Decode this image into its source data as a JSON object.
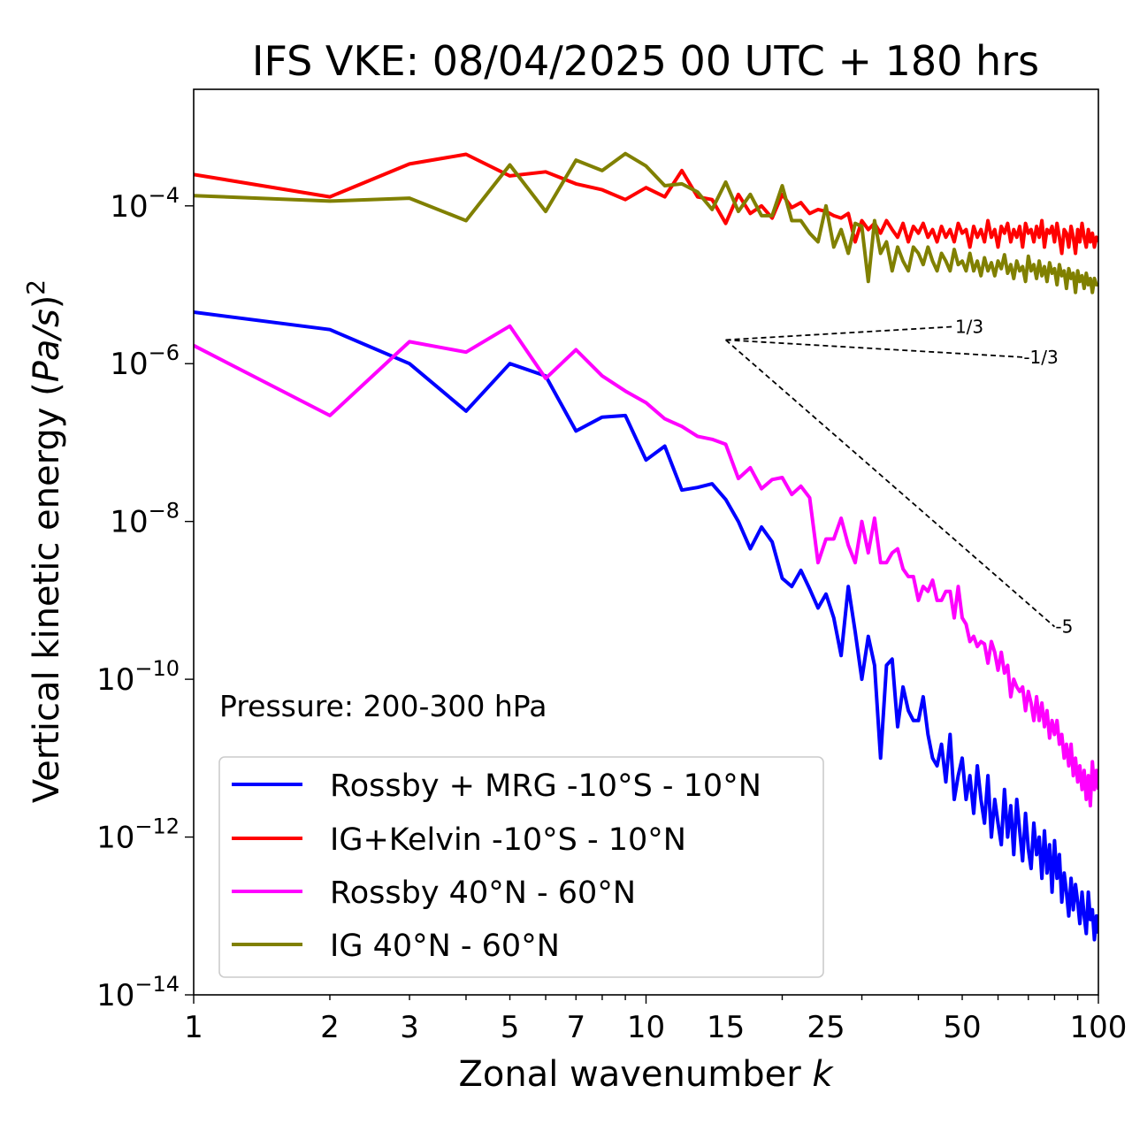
{
  "chart_data": {
    "type": "line",
    "title": "IFS VKE: 08/04/2025 00 UTC + 180 hrs",
    "xlabel": "Zonal wavenumber k",
    "ylabel": "Vertical kinetic energy (Pa/s)²",
    "xscale": "log",
    "yscale": "log",
    "xlim": [
      1,
      100
    ],
    "ylim": [
      1e-14,
      0.003
    ],
    "xticks": [
      1,
      2,
      3,
      5,
      7,
      10,
      15,
      25,
      50,
      100
    ],
    "xtick_labels": [
      "1",
      "2",
      "3",
      "5",
      "7",
      "10",
      "15",
      "25",
      "50",
      "100"
    ],
    "yticks": [
      {
        "value": 1e-14,
        "base": "10",
        "exp": "−14"
      },
      {
        "value": 1e-12,
        "base": "10",
        "exp": "−12"
      },
      {
        "value": 1e-10,
        "base": "10",
        "exp": "−10"
      },
      {
        "value": 1e-08,
        "base": "10",
        "exp": "−8"
      },
      {
        "value": 1e-06,
        "base": "10",
        "exp": "−6"
      },
      {
        "value": 0.0001,
        "base": "10",
        "exp": "−4"
      }
    ],
    "annotation": "Pressure: 200-300 hPa",
    "legend_position": "lower-left",
    "grid": false,
    "series": [
      {
        "name": "Rossby + MRG -10°S - 10°N",
        "color": "#0000ff",
        "x": [
          1,
          2,
          3,
          4,
          5,
          6,
          7,
          8,
          9,
          10,
          11,
          12,
          13,
          14,
          15,
          16,
          17,
          18,
          19,
          20,
          21,
          22,
          23,
          24,
          25,
          26,
          27,
          28,
          29,
          30,
          31,
          32,
          33,
          34,
          35,
          36,
          37,
          38,
          39,
          40,
          41,
          42,
          43,
          44,
          45,
          46,
          47,
          48,
          49,
          50,
          51,
          52,
          53,
          54,
          55,
          56,
          57,
          58,
          59,
          60,
          61,
          62,
          63,
          64,
          65,
          66,
          67,
          68,
          69,
          70,
          71,
          72,
          73,
          74,
          75,
          76,
          77,
          78,
          79,
          80,
          81,
          82,
          83,
          84,
          85,
          86,
          87,
          88,
          89,
          90,
          91,
          92,
          93,
          94,
          95,
          96,
          97,
          98,
          99,
          100
        ],
        "y": [
          4.5e-06,
          2.7e-06,
          1e-06,
          2.5e-07,
          1e-06,
          7e-07,
          1.4e-07,
          2.1e-07,
          2.2e-07,
          6e-08,
          9e-08,
          2.5e-08,
          2.7e-08,
          3e-08,
          1.9e-08,
          1e-08,
          4.5e-09,
          8.5e-09,
          5.5e-09,
          1.9e-09,
          1.5e-09,
          2.4e-09,
          1.4e-09,
          8e-10,
          1.2e-09,
          6e-10,
          2e-10,
          1.5e-09,
          4e-10,
          1e-10,
          3.5e-10,
          1.5e-10,
          1e-11,
          1.5e-10,
          1.8e-10,
          2.5e-11,
          8e-11,
          4e-11,
          3e-11,
          3e-11,
          6e-11,
          2e-11,
          1e-11,
          8e-12,
          1.5e-11,
          5e-12,
          2e-11,
          3e-12,
          6e-12,
          1e-11,
          3e-12,
          6e-12,
          2e-12,
          8e-12,
          3e-12,
          1.5e-12,
          6e-12,
          1e-12,
          3e-12,
          1.5e-12,
          8e-13,
          4e-12,
          1e-12,
          2.5e-12,
          6e-13,
          3e-12,
          1.2e-12,
          5e-13,
          2e-12,
          7e-13,
          4e-13,
          1.5e-12,
          6e-13,
          1e-12,
          3e-13,
          1.2e-12,
          3.5e-13,
          8e-13,
          2e-13,
          9e-13,
          3e-13,
          6e-13,
          1.5e-13,
          3.5e-13,
          2e-13,
          1e-13,
          3e-13,
          1.2e-13,
          2.5e-13,
          1.5e-13,
          8e-14,
          2e-13,
          1e-13,
          6e-14,
          2e-13,
          9e-14,
          1.2e-13,
          5e-14,
          1e-13,
          6e-14
        ]
      },
      {
        "name": "IG+Kelvin -10°S - 10°N",
        "color": "#ff0000",
        "x": [
          1,
          2,
          3,
          4,
          5,
          6,
          7,
          8,
          9,
          10,
          11,
          12,
          13,
          14,
          15,
          16,
          17,
          18,
          19,
          20,
          21,
          22,
          23,
          24,
          25,
          26,
          27,
          28,
          29,
          30,
          31,
          32,
          33,
          34,
          35,
          36,
          37,
          38,
          39,
          40,
          41,
          42,
          43,
          44,
          45,
          46,
          47,
          48,
          49,
          50,
          51,
          52,
          53,
          54,
          55,
          56,
          57,
          58,
          59,
          60,
          61,
          62,
          63,
          64,
          65,
          66,
          67,
          68,
          69,
          70,
          71,
          72,
          73,
          74,
          75,
          76,
          77,
          78,
          79,
          80,
          81,
          82,
          83,
          84,
          85,
          86,
          87,
          88,
          89,
          90,
          91,
          92,
          93,
          94,
          95,
          96,
          97,
          98,
          99,
          100
        ],
        "y": [
          0.00025,
          0.00013,
          0.00034,
          0.00045,
          0.00024,
          0.00027,
          0.00019,
          0.00016,
          0.00012,
          0.00017,
          0.00013,
          0.00028,
          0.00013,
          0.00012,
          6e-05,
          0.00014,
          8e-05,
          0.0001,
          7e-05,
          0.00014,
          9.5e-05,
          0.00011,
          8e-05,
          9e-05,
          8.5e-05,
          7.5e-05,
          7e-05,
          8e-05,
          3.5e-05,
          6.5e-05,
          5e-05,
          6e-05,
          4.5e-05,
          6.5e-05,
          5e-05,
          4e-05,
          6e-05,
          3.5e-05,
          5.5e-05,
          4.5e-05,
          6e-05,
          4e-05,
          5e-05,
          3.5e-05,
          5.5e-05,
          4e-05,
          5e-05,
          3.5e-05,
          6e-05,
          4.5e-05,
          5e-05,
          3e-05,
          5.5e-05,
          4e-05,
          5e-05,
          3.5e-05,
          6.5e-05,
          4e-05,
          5e-05,
          3e-05,
          5.5e-05,
          4.5e-05,
          6e-05,
          3.5e-05,
          5e-05,
          4e-05,
          5.5e-05,
          3e-05,
          6e-05,
          4.5e-05,
          5e-05,
          3.5e-05,
          5.5e-05,
          4e-05,
          6.5e-05,
          3e-05,
          5e-05,
          4.5e-05,
          5.5e-05,
          3.5e-05,
          6e-05,
          4e-05,
          2.5e-05,
          5e-05,
          4.5e-05,
          3e-05,
          5.5e-05,
          4e-05,
          2.5e-05,
          5e-05,
          3.5e-05,
          6e-05,
          4e-05,
          3e-05,
          5e-05,
          3.5e-05,
          4.5e-05,
          3e-05,
          4e-05,
          3.5e-05
        ]
      },
      {
        "name": "Rossby 40°N - 60°N",
        "color": "#ff00ff",
        "x": [
          1,
          2,
          3,
          4,
          5,
          6,
          7,
          8,
          9,
          10,
          11,
          12,
          13,
          14,
          15,
          16,
          17,
          18,
          19,
          20,
          21,
          22,
          23,
          24,
          25,
          26,
          27,
          28,
          29,
          30,
          31,
          32,
          33,
          34,
          35,
          36,
          37,
          38,
          39,
          40,
          41,
          42,
          43,
          44,
          45,
          46,
          47,
          48,
          49,
          50,
          51,
          52,
          53,
          54,
          55,
          56,
          57,
          58,
          59,
          60,
          61,
          62,
          63,
          64,
          65,
          66,
          67,
          68,
          69,
          70,
          71,
          72,
          73,
          74,
          75,
          76,
          77,
          78,
          79,
          80,
          81,
          82,
          83,
          84,
          85,
          86,
          87,
          88,
          89,
          90,
          91,
          92,
          93,
          94,
          95,
          96,
          97,
          98,
          99,
          100
        ],
        "y": [
          1.7e-06,
          2.2e-07,
          1.9e-06,
          1.4e-06,
          3e-06,
          6.5e-07,
          1.5e-06,
          7e-07,
          4.5e-07,
          3.2e-07,
          2e-07,
          1.6e-07,
          1.2e-07,
          1.1e-07,
          9.5e-08,
          3.5e-08,
          4.8e-08,
          2.6e-08,
          3.4e-08,
          3.6e-08,
          2.2e-08,
          2.8e-08,
          2e-08,
          3e-09,
          6e-09,
          6e-09,
          1.1e-08,
          5e-09,
          3e-09,
          1e-08,
          4e-09,
          1.1e-08,
          3e-09,
          3e-09,
          4e-09,
          4.5e-09,
          2.5e-09,
          2e-09,
          2e-09,
          1e-09,
          1.5e-09,
          1.3e-09,
          1.8e-09,
          1e-09,
          1e-09,
          1.3e-09,
          1.3e-09,
          6e-10,
          1.5e-09,
          6e-10,
          5e-10,
          3e-10,
          3.5e-10,
          2.6e-10,
          3e-10,
          2.8e-10,
          1.6e-10,
          3e-10,
          2.2e-10,
          1.3e-10,
          2.2e-10,
          1.2e-10,
          1.5e-10,
          6e-11,
          1e-10,
          8e-11,
          7e-11,
          8e-11,
          4e-11,
          7e-11,
          5e-11,
          3e-11,
          6e-11,
          3e-11,
          5e-11,
          2.5e-11,
          4e-11,
          1.8e-11,
          3e-11,
          2e-11,
          3e-11,
          1.5e-11,
          2e-11,
          1e-11,
          1.5e-11,
          8e-12,
          1.5e-11,
          6e-12,
          1e-11,
          5e-12,
          8e-12,
          4e-12,
          7e-12,
          3e-12,
          6e-12,
          2.5e-12,
          9e-12,
          4e-12,
          7e-12,
          4e-12
        ]
      },
      {
        "name": "IG 40°N - 60°N",
        "color": "#808000",
        "x": [
          1,
          2,
          3,
          4,
          5,
          6,
          7,
          8,
          9,
          10,
          11,
          12,
          13,
          14,
          15,
          16,
          17,
          18,
          19,
          20,
          21,
          22,
          23,
          24,
          25,
          26,
          27,
          28,
          29,
          30,
          31,
          32,
          33,
          34,
          35,
          36,
          37,
          38,
          39,
          40,
          41,
          42,
          43,
          44,
          45,
          46,
          47,
          48,
          49,
          50,
          51,
          52,
          53,
          54,
          55,
          56,
          57,
          58,
          59,
          60,
          61,
          62,
          63,
          64,
          65,
          66,
          67,
          68,
          69,
          70,
          71,
          72,
          73,
          74,
          75,
          76,
          77,
          78,
          79,
          80,
          81,
          82,
          83,
          84,
          85,
          86,
          87,
          88,
          89,
          90,
          91,
          92,
          93,
          94,
          95,
          96,
          97,
          98,
          99,
          100
        ],
        "y": [
          0.000135,
          0.000115,
          0.000125,
          6.5e-05,
          0.00033,
          8.5e-05,
          0.00038,
          0.00028,
          0.00046,
          0.00032,
          0.00018,
          0.00019,
          0.00015,
          9e-05,
          0.0002,
          8.5e-05,
          0.00014,
          7.5e-05,
          7.5e-05,
          0.00018,
          6.5e-05,
          6.5e-05,
          4.5e-05,
          3.5e-05,
          0.0001,
          3e-05,
          5e-05,
          2.5e-05,
          6e-05,
          5.5e-05,
          1.1e-05,
          6.5e-05,
          2.5e-05,
          3.5e-05,
          1.5e-05,
          3e-05,
          2e-05,
          1.5e-05,
          3e-05,
          2.5e-05,
          1.8e-05,
          3e-05,
          2e-05,
          1.5e-05,
          2.5e-05,
          2e-05,
          1.5e-05,
          2.8e-05,
          1.8e-05,
          2e-05,
          1.5e-05,
          2.5e-05,
          1.5e-05,
          2e-05,
          1.3e-05,
          2.2e-05,
          1.5e-05,
          1.9e-05,
          1.3e-05,
          2e-05,
          1.6e-05,
          2.4e-05,
          1.4e-05,
          1.8e-05,
          1.2e-05,
          2e-05,
          1.5e-05,
          1.7e-05,
          1.1e-05,
          2.3e-05,
          1.5e-05,
          1.8e-05,
          1.2e-05,
          2e-05,
          1.3e-05,
          1.7e-05,
          1.1e-05,
          1.9e-05,
          1.4e-05,
          1.6e-05,
          1e-05,
          1.8e-05,
          1.3e-05,
          1.5e-05,
          9e-06,
          1.6e-05,
          1.2e-05,
          1.4e-05,
          8e-06,
          1.5e-05,
          1.1e-05,
          1.3e-05,
          9e-06,
          1.4e-05,
          1e-05,
          1.2e-05,
          8e-06,
          1.2e-05,
          1e-05,
          1e-05
        ]
      }
    ],
    "reference_slopes": [
      {
        "label": "1/3",
        "slope": 0.333333,
        "x0": 15,
        "y0": 2e-06,
        "x1": 48
      },
      {
        "label": "-1/3",
        "slope": -0.333333,
        "x0": 15,
        "y0": 2e-06,
        "x1": 68
      },
      {
        "label": "-5",
        "slope": -5,
        "x0": 15,
        "y0": 2e-06,
        "x1": 80
      }
    ]
  }
}
